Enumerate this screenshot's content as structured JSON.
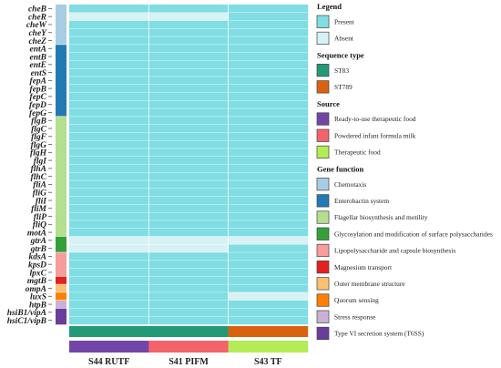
{
  "chart_data": {
    "type": "heatmap",
    "samples": [
      "S44 RUTF",
      "S41 PIFM",
      "S43 TF"
    ],
    "genes": [
      {
        "name": "cheB",
        "func": "Chemotaxis",
        "values": [
          "Present",
          "Present",
          "Present"
        ]
      },
      {
        "name": "cheR",
        "func": "Chemotaxis",
        "values": [
          "Absent",
          "Absent",
          "Present"
        ]
      },
      {
        "name": "cheW",
        "func": "Chemotaxis",
        "values": [
          "Present",
          "Present",
          "Present"
        ]
      },
      {
        "name": "cheY",
        "func": "Chemotaxis",
        "values": [
          "Present",
          "Present",
          "Present"
        ]
      },
      {
        "name": "cheZ",
        "func": "Chemotaxis",
        "values": [
          "Present",
          "Present",
          "Present"
        ]
      },
      {
        "name": "entA",
        "func": "Enterobactin system",
        "values": [
          "Present",
          "Present",
          "Present"
        ]
      },
      {
        "name": "entB",
        "func": "Enterobactin system",
        "values": [
          "Present",
          "Present",
          "Present"
        ]
      },
      {
        "name": "entE",
        "func": "Enterobactin system",
        "values": [
          "Present",
          "Present",
          "Present"
        ]
      },
      {
        "name": "entS",
        "func": "Enterobactin system",
        "values": [
          "Present",
          "Present",
          "Present"
        ]
      },
      {
        "name": "fepA",
        "func": "Enterobactin system",
        "values": [
          "Present",
          "Present",
          "Present"
        ]
      },
      {
        "name": "fepB",
        "func": "Enterobactin system",
        "values": [
          "Present",
          "Present",
          "Present"
        ]
      },
      {
        "name": "fepC",
        "func": "Enterobactin system",
        "values": [
          "Present",
          "Present",
          "Present"
        ]
      },
      {
        "name": "fepD",
        "func": "Enterobactin system",
        "values": [
          "Present",
          "Present",
          "Present"
        ]
      },
      {
        "name": "fepG",
        "func": "Enterobactin system",
        "values": [
          "Present",
          "Present",
          "Present"
        ]
      },
      {
        "name": "flgB",
        "func": "Flagellar biosynthesis and motility",
        "values": [
          "Present",
          "Present",
          "Present"
        ]
      },
      {
        "name": "flgC",
        "func": "Flagellar biosynthesis and motility",
        "values": [
          "Present",
          "Present",
          "Present"
        ]
      },
      {
        "name": "flgF",
        "func": "Flagellar biosynthesis and motility",
        "values": [
          "Present",
          "Present",
          "Present"
        ]
      },
      {
        "name": "flgG",
        "func": "Flagellar biosynthesis and motility",
        "values": [
          "Present",
          "Present",
          "Present"
        ]
      },
      {
        "name": "flgH",
        "func": "Flagellar biosynthesis and motility",
        "values": [
          "Present",
          "Present",
          "Present"
        ]
      },
      {
        "name": "flgI",
        "func": "Flagellar biosynthesis and motility",
        "values": [
          "Present",
          "Present",
          "Present"
        ]
      },
      {
        "name": "flhA",
        "func": "Flagellar biosynthesis and motility",
        "values": [
          "Present",
          "Present",
          "Present"
        ]
      },
      {
        "name": "flhC",
        "func": "Flagellar biosynthesis and motility",
        "values": [
          "Present",
          "Present",
          "Present"
        ]
      },
      {
        "name": "fliA",
        "func": "Flagellar biosynthesis and motility",
        "values": [
          "Present",
          "Present",
          "Present"
        ]
      },
      {
        "name": "fliG",
        "func": "Flagellar biosynthesis and motility",
        "values": [
          "Present",
          "Present",
          "Present"
        ]
      },
      {
        "name": "fliI",
        "func": "Flagellar biosynthesis and motility",
        "values": [
          "Present",
          "Present",
          "Present"
        ]
      },
      {
        "name": "fliM",
        "func": "Flagellar biosynthesis and motility",
        "values": [
          "Present",
          "Present",
          "Present"
        ]
      },
      {
        "name": "fliP",
        "func": "Flagellar biosynthesis and motility",
        "values": [
          "Present",
          "Present",
          "Present"
        ]
      },
      {
        "name": "fliQ",
        "func": "Flagellar biosynthesis and motility",
        "values": [
          "Present",
          "Present",
          "Present"
        ]
      },
      {
        "name": "motA",
        "func": "Flagellar biosynthesis and motility",
        "values": [
          "Present",
          "Present",
          "Present"
        ]
      },
      {
        "name": "gtrA",
        "func": "Glycosylation and modification of surface polysaccharides",
        "values": [
          "Absent",
          "Absent",
          "Absent"
        ]
      },
      {
        "name": "gtrB",
        "func": "Glycosylation and modification of surface polysaccharides",
        "values": [
          "Absent",
          "Absent",
          "Present"
        ]
      },
      {
        "name": "kdsA",
        "func": "Lipopolysaccharide and capsule biosynthesis",
        "values": [
          "Present",
          "Present",
          "Present"
        ]
      },
      {
        "name": "kpsD",
        "func": "Lipopolysaccharide and capsule biosynthesis",
        "values": [
          "Present",
          "Present",
          "Present"
        ]
      },
      {
        "name": "lpxC",
        "func": "Lipopolysaccharide and capsule biosynthesis",
        "values": [
          "Present",
          "Present",
          "Present"
        ]
      },
      {
        "name": "mgtB",
        "func": "Magnesium transport",
        "values": [
          "Present",
          "Present",
          "Present"
        ]
      },
      {
        "name": "ompA",
        "func": "Outer membrane structure",
        "values": [
          "Present",
          "Present",
          "Present"
        ]
      },
      {
        "name": "luxS",
        "func": "Quorum sensing",
        "values": [
          "Present",
          "Present",
          "Absent"
        ]
      },
      {
        "name": "htpB",
        "func": "Stress response",
        "values": [
          "Present",
          "Present",
          "Present"
        ]
      },
      {
        "name": "hsiB1/vipA",
        "func": "Type VI secretion system (T6SS)",
        "values": [
          "Present",
          "Present",
          "Present"
        ]
      },
      {
        "name": "hsiC1/vipB",
        "func": "Type VI secretion system (T6SS)",
        "values": [
          "Present",
          "Present",
          "Present"
        ]
      }
    ],
    "sequence_type": [
      "ST83",
      "ST83",
      "ST789"
    ],
    "source": [
      "Ready-to-use therapeutic food",
      "Powdered infant formula milk",
      "Therapeutic food"
    ],
    "legend": [
      {
        "title": "Legend",
        "items": [
          {
            "label": "Present",
            "color": "#7fdde3"
          },
          {
            "label": "Absent",
            "color": "#d7f2f5"
          }
        ]
      },
      {
        "title": "Sequence type",
        "items": [
          {
            "label": "ST83",
            "color": "#239a77"
          },
          {
            "label": "ST789",
            "color": "#d9620f"
          }
        ]
      },
      {
        "title": "Source",
        "items": [
          {
            "label": "Ready-to-use therapeutic food",
            "color": "#7445a8"
          },
          {
            "label": "Powdered infant formula milk",
            "color": "#f46369"
          },
          {
            "label": "Therapeutic food",
            "color": "#b4ec57"
          }
        ]
      },
      {
        "title": "Gene function",
        "items": [
          {
            "label": "Chemotaxis",
            "color": "#a7cde3"
          },
          {
            "label": "Enterobactin system",
            "color": "#2379b3"
          },
          {
            "label": "Flagellar biosynthesis and motility",
            "color": "#b3df8e"
          },
          {
            "label": "Glycosylation and modification of surface polysaccharides",
            "color": "#34a039"
          },
          {
            "label": "Lipopolysaccharide and capsule biosynthesis",
            "color": "#f79d9b"
          },
          {
            "label": "Magnesium transport",
            "color": "#e3211d"
          },
          {
            "label": "Outer membrane structure",
            "color": "#fdbf70"
          },
          {
            "label": "Quorum sensing",
            "color": "#fe7f02"
          },
          {
            "label": "Stress response",
            "color": "#cab2d6"
          },
          {
            "label": "Type VI secretion system (T6SS)",
            "color": "#6a3d9a"
          }
        ]
      }
    ]
  }
}
